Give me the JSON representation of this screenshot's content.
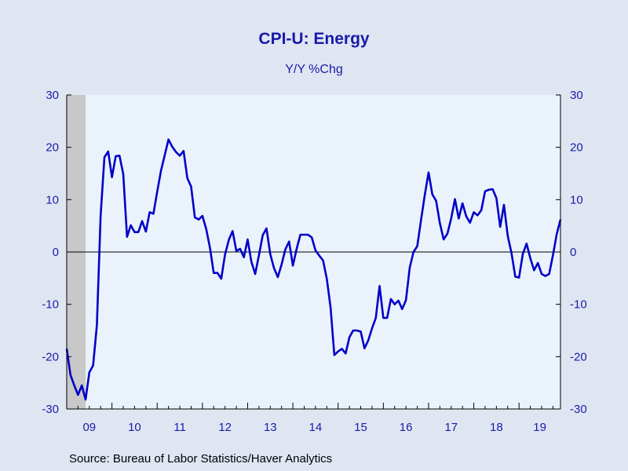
{
  "chart_data": {
    "type": "line",
    "title": "CPI-U: Energy",
    "subtitle": "Y/Y %Chg",
    "source": "Source:  Bureau of Labor Statistics/Haver Analytics",
    "ylim": [
      -30,
      30
    ],
    "y_ticks": [
      30,
      20,
      10,
      0,
      -10,
      -20,
      -30
    ],
    "x_range": [
      2009.0,
      2019.9167
    ],
    "x_tick_labels": [
      {
        "label": "09",
        "year": 2009
      },
      {
        "label": "10",
        "year": 2010
      },
      {
        "label": "11",
        "year": 2011
      },
      {
        "label": "12",
        "year": 2012
      },
      {
        "label": "13",
        "year": 2013
      },
      {
        "label": "14",
        "year": 2014
      },
      {
        "label": "15",
        "year": 2015
      },
      {
        "label": "16",
        "year": 2016
      },
      {
        "label": "17",
        "year": 2017
      },
      {
        "label": "18",
        "year": 2018
      },
      {
        "label": "19",
        "year": 2019
      }
    ],
    "recession_shading": [
      2009.0,
      2009.4167
    ],
    "grid": false,
    "zero_line": true,
    "colors": {
      "line": "#0000c8",
      "plot_bg": "#eaf2fb",
      "page_bg": "#dfe6f2",
      "recession": "#c8c8c8",
      "text": "#1a1aa8"
    },
    "series": [
      {
        "start": "2009-01",
        "values": [
          -18.5,
          -23.5,
          -25.5,
          -27.3,
          -25.5,
          -28.2,
          -23.0,
          -21.7,
          -14.0,
          7.0,
          18.1,
          19.2,
          14.3,
          18.3,
          18.4,
          14.9,
          2.9,
          5.1,
          3.8,
          3.8,
          5.9,
          3.9,
          7.6,
          7.3,
          11.5,
          15.5,
          18.5,
          21.5,
          20.1,
          19.1,
          18.4,
          19.3,
          14.1,
          12.5,
          6.6,
          6.2,
          6.9,
          4.4,
          0.8,
          -4.0,
          -4.0,
          -5.1,
          -0.5,
          2.3,
          4.0,
          0.2,
          0.6,
          -1.0,
          2.4,
          -1.9,
          -4.2,
          -0.6,
          3.2,
          4.5,
          -0.4,
          -3.1,
          -4.8,
          -2.4,
          0.5,
          2.0,
          -2.6,
          0.6,
          3.3,
          3.3,
          3.3,
          2.8,
          0.3,
          -0.7,
          -1.6,
          -5.1,
          -10.6,
          -19.7,
          -19.0,
          -18.5,
          -19.4,
          -16.3,
          -15.0,
          -15.0,
          -15.2,
          -18.4,
          -16.9,
          -14.6,
          -12.6,
          -6.5,
          -12.6,
          -12.6,
          -9.0,
          -10.0,
          -9.3,
          -10.9,
          -9.2,
          -3.0,
          0.0,
          1.1,
          6.1,
          10.9,
          15.2,
          11.0,
          9.8,
          5.5,
          2.4,
          3.5,
          6.4,
          10.1,
          6.4,
          9.3,
          6.8,
          5.6,
          7.6,
          7.0,
          8.0,
          11.6,
          11.9,
          12.0,
          10.3,
          4.8,
          9.0,
          3.1,
          -0.2,
          -4.7,
          -4.9,
          -0.4,
          1.6,
          -1.2,
          -3.5,
          -2.1,
          -4.2,
          -4.6,
          -4.2,
          -0.6,
          3.4,
          6.2
        ]
      }
    ]
  }
}
